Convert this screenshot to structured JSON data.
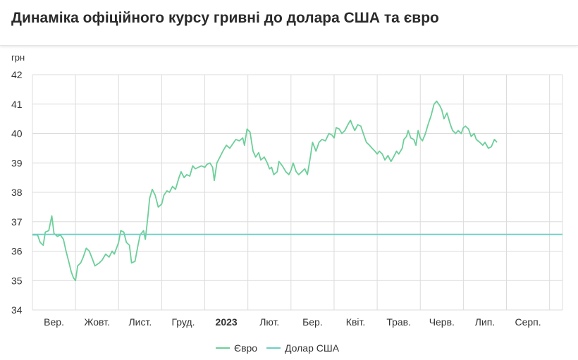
{
  "title": "Динаміка офіційного курсу гривні до долара США та євро",
  "chart_data": {
    "type": "line",
    "title": "Динаміка офіційного курсу гривні до долара США та євро",
    "ylabel": "грн",
    "ylim": [
      34,
      42
    ],
    "yticks": [
      34,
      35,
      36,
      37,
      38,
      39,
      40,
      41,
      42
    ],
    "xlim": [
      0,
      12.3
    ],
    "grid": true,
    "legend_position": "bottom-center",
    "categories": [
      "Вер.",
      "Жовт.",
      "Лист.",
      "Груд.",
      "2023",
      "Лют.",
      "Бер.",
      "Квіт.",
      "Трав.",
      "Черв.",
      "Лип.",
      "Серп."
    ],
    "category_bold": [
      false,
      false,
      false,
      false,
      true,
      false,
      false,
      false,
      false,
      false,
      false,
      false
    ],
    "series": [
      {
        "name": "Євро",
        "color": "#6ccf99",
        "points": [
          [
            0.0,
            36.55
          ],
          [
            0.12,
            36.55
          ],
          [
            0.18,
            36.3
          ],
          [
            0.25,
            36.2
          ],
          [
            0.3,
            36.65
          ],
          [
            0.38,
            36.7
          ],
          [
            0.45,
            37.2
          ],
          [
            0.5,
            36.6
          ],
          [
            0.58,
            36.5
          ],
          [
            0.65,
            36.55
          ],
          [
            0.72,
            36.4
          ],
          [
            0.78,
            36.0
          ],
          [
            0.85,
            35.6
          ],
          [
            0.9,
            35.3
          ],
          [
            0.95,
            35.1
          ],
          [
            1.0,
            35.0
          ],
          [
            1.05,
            35.5
          ],
          [
            1.12,
            35.6
          ],
          [
            1.18,
            35.8
          ],
          [
            1.25,
            36.1
          ],
          [
            1.32,
            36.0
          ],
          [
            1.4,
            35.7
          ],
          [
            1.45,
            35.5
          ],
          [
            1.55,
            35.6
          ],
          [
            1.62,
            35.7
          ],
          [
            1.7,
            35.9
          ],
          [
            1.78,
            35.8
          ],
          [
            1.85,
            36.0
          ],
          [
            1.9,
            35.9
          ],
          [
            2.0,
            36.3
          ],
          [
            2.05,
            36.7
          ],
          [
            2.12,
            36.65
          ],
          [
            2.18,
            36.3
          ],
          [
            2.25,
            36.2
          ],
          [
            2.3,
            35.6
          ],
          [
            2.38,
            35.65
          ],
          [
            2.45,
            36.2
          ],
          [
            2.5,
            36.55
          ],
          [
            2.58,
            36.7
          ],
          [
            2.62,
            36.4
          ],
          [
            2.68,
            37.2
          ],
          [
            2.72,
            37.8
          ],
          [
            2.78,
            38.1
          ],
          [
            2.85,
            37.9
          ],
          [
            2.92,
            37.5
          ],
          [
            3.0,
            37.6
          ],
          [
            3.05,
            37.9
          ],
          [
            3.12,
            38.05
          ],
          [
            3.18,
            38.0
          ],
          [
            3.25,
            38.2
          ],
          [
            3.32,
            38.1
          ],
          [
            3.4,
            38.5
          ],
          [
            3.45,
            38.7
          ],
          [
            3.52,
            38.5
          ],
          [
            3.58,
            38.6
          ],
          [
            3.65,
            38.55
          ],
          [
            3.72,
            38.9
          ],
          [
            3.78,
            38.8
          ],
          [
            3.85,
            38.85
          ],
          [
            3.92,
            38.9
          ],
          [
            4.0,
            38.85
          ],
          [
            4.05,
            38.95
          ],
          [
            4.12,
            39.0
          ],
          [
            4.18,
            38.85
          ],
          [
            4.22,
            38.4
          ],
          [
            4.28,
            39.0
          ],
          [
            4.35,
            39.2
          ],
          [
            4.42,
            39.4
          ],
          [
            4.5,
            39.6
          ],
          [
            4.58,
            39.5
          ],
          [
            4.65,
            39.65
          ],
          [
            4.72,
            39.8
          ],
          [
            4.8,
            39.75
          ],
          [
            4.88,
            39.85
          ],
          [
            4.92,
            39.6
          ],
          [
            4.98,
            40.15
          ],
          [
            5.05,
            40.05
          ],
          [
            5.12,
            39.4
          ],
          [
            5.18,
            39.2
          ],
          [
            5.25,
            39.35
          ],
          [
            5.3,
            39.1
          ],
          [
            5.38,
            39.2
          ],
          [
            5.45,
            39.0
          ],
          [
            5.5,
            38.8
          ],
          [
            5.55,
            38.85
          ],
          [
            5.6,
            38.6
          ],
          [
            5.68,
            38.7
          ],
          [
            5.72,
            39.05
          ],
          [
            5.8,
            38.9
          ],
          [
            5.88,
            38.7
          ],
          [
            5.95,
            38.6
          ],
          [
            6.0,
            38.75
          ],
          [
            6.05,
            39.0
          ],
          [
            6.12,
            38.7
          ],
          [
            6.18,
            38.6
          ],
          [
            6.25,
            38.7
          ],
          [
            6.32,
            38.8
          ],
          [
            6.38,
            38.6
          ],
          [
            6.45,
            39.2
          ],
          [
            6.5,
            39.7
          ],
          [
            6.58,
            39.4
          ],
          [
            6.65,
            39.7
          ],
          [
            6.72,
            39.8
          ],
          [
            6.8,
            39.75
          ],
          [
            6.88,
            40.0
          ],
          [
            6.95,
            39.95
          ],
          [
            7.0,
            39.85
          ],
          [
            7.05,
            40.2
          ],
          [
            7.12,
            40.15
          ],
          [
            7.18,
            40.0
          ],
          [
            7.25,
            40.1
          ],
          [
            7.32,
            40.3
          ],
          [
            7.38,
            40.45
          ],
          [
            7.42,
            40.3
          ],
          [
            7.48,
            40.1
          ],
          [
            7.55,
            40.3
          ],
          [
            7.62,
            40.25
          ],
          [
            7.7,
            39.9
          ],
          [
            7.75,
            39.7
          ],
          [
            7.82,
            39.6
          ],
          [
            7.88,
            39.5
          ],
          [
            7.95,
            39.4
          ],
          [
            8.0,
            39.3
          ],
          [
            8.05,
            39.4
          ],
          [
            8.12,
            39.3
          ],
          [
            8.18,
            39.1
          ],
          [
            8.25,
            39.25
          ],
          [
            8.32,
            39.05
          ],
          [
            8.38,
            39.2
          ],
          [
            8.45,
            39.4
          ],
          [
            8.5,
            39.3
          ],
          [
            8.58,
            39.5
          ],
          [
            8.62,
            39.8
          ],
          [
            8.68,
            39.9
          ],
          [
            8.72,
            40.1
          ],
          [
            8.78,
            39.85
          ],
          [
            8.85,
            39.8
          ],
          [
            8.9,
            39.6
          ],
          [
            8.95,
            40.1
          ],
          [
            9.0,
            39.85
          ],
          [
            9.05,
            39.75
          ],
          [
            9.12,
            40.0
          ],
          [
            9.18,
            40.3
          ],
          [
            9.25,
            40.6
          ],
          [
            9.32,
            41.0
          ],
          [
            9.38,
            41.1
          ],
          [
            9.45,
            40.95
          ],
          [
            9.5,
            40.8
          ],
          [
            9.55,
            40.5
          ],
          [
            9.62,
            40.7
          ],
          [
            9.7,
            40.3
          ],
          [
            9.75,
            40.1
          ],
          [
            9.82,
            40.0
          ],
          [
            9.88,
            40.1
          ],
          [
            9.95,
            40.0
          ],
          [
            10.0,
            40.2
          ],
          [
            10.05,
            40.25
          ],
          [
            10.12,
            40.15
          ],
          [
            10.18,
            39.9
          ],
          [
            10.25,
            40.0
          ],
          [
            10.3,
            39.8
          ],
          [
            10.38,
            39.7
          ],
          [
            10.45,
            39.6
          ],
          [
            10.5,
            39.7
          ],
          [
            10.58,
            39.5
          ],
          [
            10.65,
            39.55
          ],
          [
            10.72,
            39.8
          ],
          [
            10.78,
            39.7
          ]
        ]
      },
      {
        "name": "Долар США",
        "color": "#6ccfc4",
        "points": [
          [
            0.0,
            36.57
          ],
          [
            12.3,
            36.57
          ]
        ]
      }
    ]
  }
}
